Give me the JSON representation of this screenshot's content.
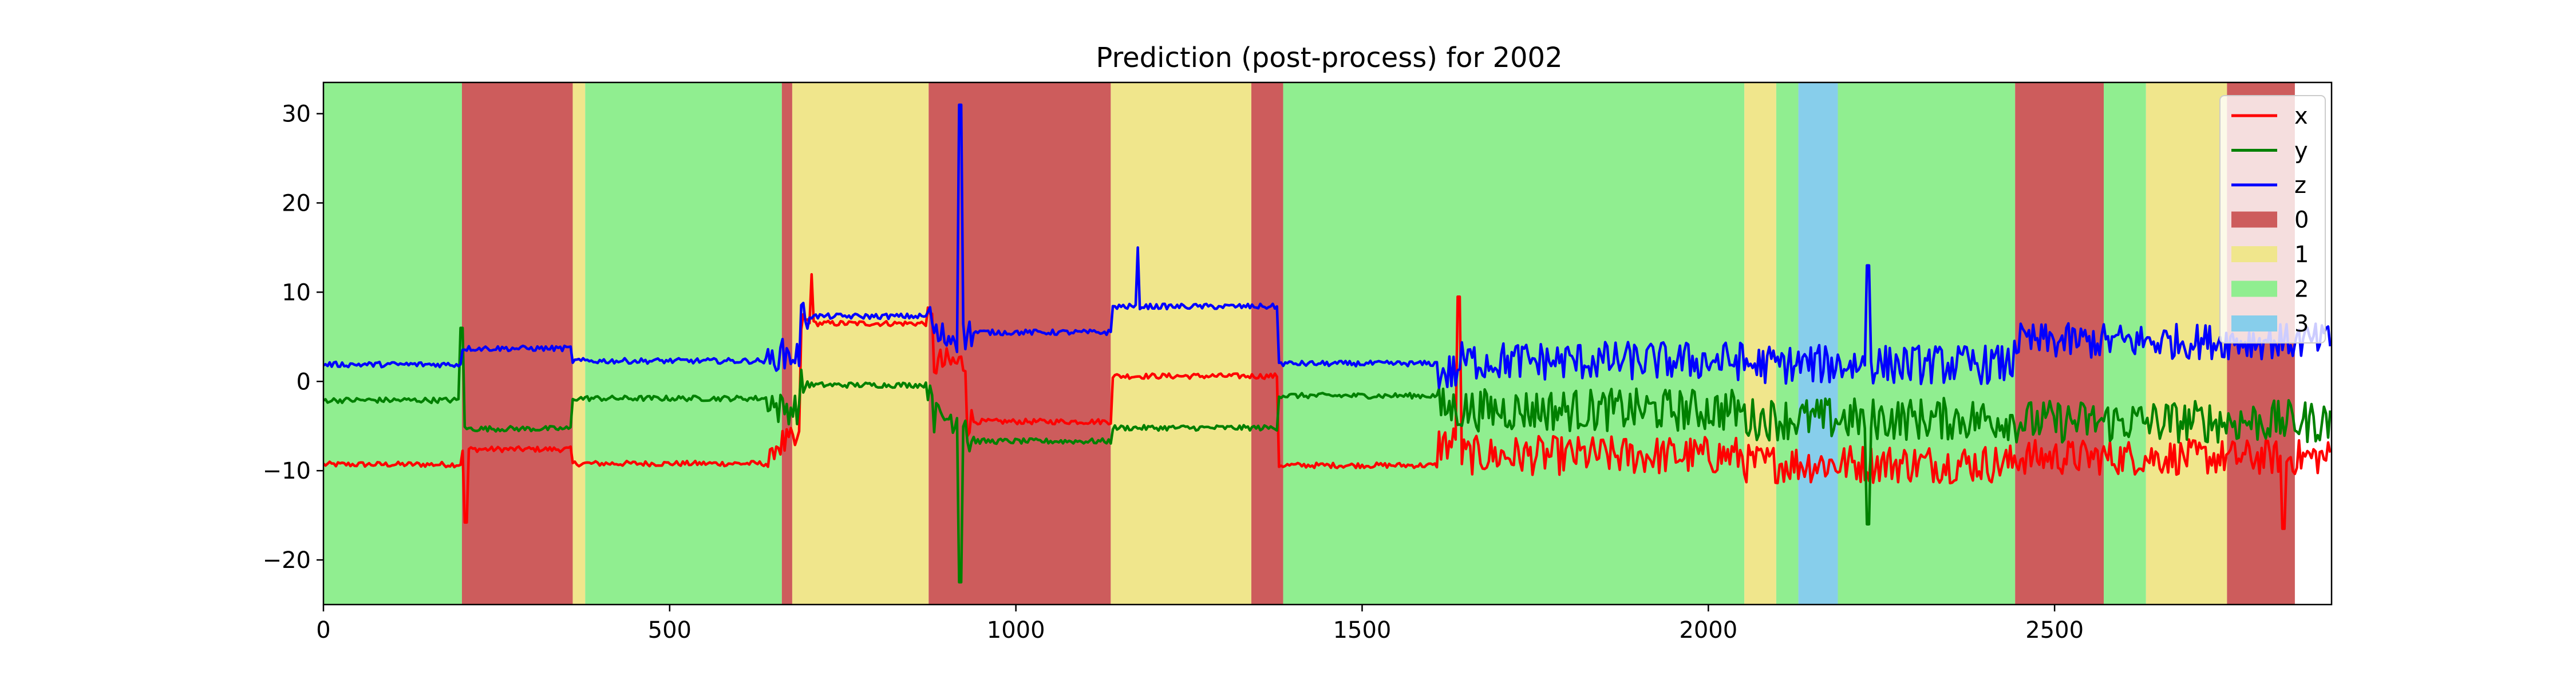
{
  "chart_data": {
    "type": "line",
    "title": "Prediction (post-process) for 2002",
    "xlabel": "",
    "ylabel": "",
    "xlim": [
      0,
      2900
    ],
    "ylim": [
      -25,
      33.5
    ],
    "x_ticks": [
      0,
      500,
      1000,
      1500,
      2000,
      2500
    ],
    "y_ticks": [
      -20,
      -10,
      0,
      10,
      20,
      30
    ],
    "grid": false,
    "legend_position": "upper right",
    "series": [
      {
        "name": "x",
        "color": "#ff0000"
      },
      {
        "name": "y",
        "color": "#008000"
      },
      {
        "name": "z",
        "color": "#0000ff"
      }
    ],
    "series_segments": {
      "x": [
        [
          0,
          200,
          -9.3
        ],
        [
          200,
          360,
          -7.6
        ],
        [
          360,
          650,
          -9.2
        ],
        [
          650,
          690,
          -7
        ],
        [
          690,
          880,
          6.5
        ],
        [
          880,
          930,
          2
        ],
        [
          930,
          1140,
          -4.5
        ],
        [
          1140,
          1380,
          0.6
        ],
        [
          1380,
          1610,
          -9.4
        ],
        [
          1610,
          1640,
          -7
        ],
        [
          1640,
          2050,
          -8.3
        ],
        [
          2050,
          2440,
          -9.2
        ],
        [
          2440,
          2900,
          -8.5
        ]
      ],
      "y": [
        [
          0,
          200,
          -2.1
        ],
        [
          200,
          360,
          -5.3
        ],
        [
          360,
          650,
          -1.9
        ],
        [
          650,
          690,
          -3
        ],
        [
          690,
          880,
          -0.4
        ],
        [
          880,
          930,
          -4
        ],
        [
          930,
          1140,
          -6.7
        ],
        [
          1140,
          1380,
          -5.2
        ],
        [
          1380,
          1610,
          -1.6
        ],
        [
          1610,
          1640,
          -3
        ],
        [
          1640,
          2050,
          -3.2
        ],
        [
          2050,
          2440,
          -4.2
        ],
        [
          2440,
          2900,
          -4.5
        ]
      ],
      "z": [
        [
          0,
          200,
          1.9
        ],
        [
          200,
          360,
          3.7
        ],
        [
          360,
          650,
          2.3
        ],
        [
          650,
          690,
          3
        ],
        [
          690,
          880,
          7.3
        ],
        [
          880,
          930,
          5
        ],
        [
          930,
          1140,
          5.5
        ],
        [
          1140,
          1380,
          8.4
        ],
        [
          1380,
          1610,
          2
        ],
        [
          1610,
          1640,
          1
        ],
        [
          1640,
          2050,
          2.3
        ],
        [
          2050,
          2440,
          1.9
        ],
        [
          2440,
          2900,
          4.5
        ]
      ]
    },
    "class_legend": [
      {
        "label": "0",
        "color": "#cd5c5c"
      },
      {
        "label": "1",
        "color": "#f0e68c"
      },
      {
        "label": "2",
        "color": "#90ee90"
      },
      {
        "label": "3",
        "color": "#87ceeb"
      }
    ],
    "class_spans": [
      {
        "class": 2,
        "x0": 0,
        "x1": 200
      },
      {
        "class": 0,
        "x0": 200,
        "x1": 360
      },
      {
        "class": 1,
        "x0": 360,
        "x1": 378
      },
      {
        "class": 2,
        "x0": 378,
        "x1": 662
      },
      {
        "class": 0,
        "x0": 662,
        "x1": 677
      },
      {
        "class": 1,
        "x0": 677,
        "x1": 874
      },
      {
        "class": 0,
        "x0": 874,
        "x1": 1137
      },
      {
        "class": 1,
        "x0": 1137,
        "x1": 1340
      },
      {
        "class": 0,
        "x0": 1340,
        "x1": 1386
      },
      {
        "class": 2,
        "x0": 1386,
        "x1": 2052
      },
      {
        "class": 1,
        "x0": 2052,
        "x1": 2098
      },
      {
        "class": 2,
        "x0": 2098,
        "x1": 2130
      },
      {
        "class": 3,
        "x0": 2130,
        "x1": 2187
      },
      {
        "class": 2,
        "x0": 2187,
        "x1": 2443
      },
      {
        "class": 0,
        "x0": 2443,
        "x1": 2571
      },
      {
        "class": 2,
        "x0": 2571,
        "x1": 2632
      },
      {
        "class": 1,
        "x0": 2632,
        "x1": 2749
      },
      {
        "class": 0,
        "x0": 2749,
        "x1": 2847
      }
    ],
    "spikes": [
      {
        "series": "z",
        "x": 920,
        "y": 31
      },
      {
        "series": "y",
        "x": 920,
        "y": -22.5
      },
      {
        "series": "z",
        "x": 1176,
        "y": 15
      },
      {
        "series": "x",
        "x": 705,
        "y": 12
      },
      {
        "series": "y",
        "x": 200,
        "y": 6
      },
      {
        "series": "x",
        "x": 205,
        "y": -15.8
      },
      {
        "series": "y",
        "x": 2230,
        "y": -16
      },
      {
        "series": "x",
        "x": 2830,
        "y": -16.5
      },
      {
        "series": "z",
        "x": 2230,
        "y": 13
      },
      {
        "series": "x",
        "x": 1640,
        "y": 9.5
      }
    ]
  }
}
